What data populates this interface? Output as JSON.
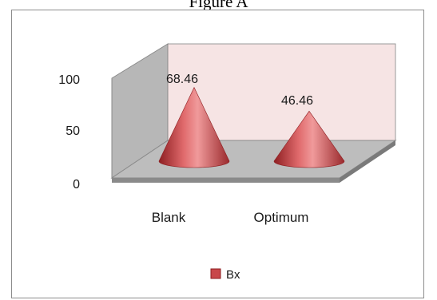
{
  "figure_title": "Figure A",
  "chart_data": {
    "type": "bar",
    "bar_shape": "cone",
    "three_d": true,
    "categories": [
      "Blank",
      "Optimum"
    ],
    "series": [
      {
        "name": "Bx",
        "values": [
          68.46,
          46.46
        ],
        "color": "#c8474a"
      }
    ],
    "data_labels": [
      "68.46",
      "46.46"
    ],
    "y_ticks": [
      "0",
      "50",
      "100"
    ],
    "ylim": [
      0,
      100
    ],
    "title": "",
    "xlabel": "",
    "ylabel": "",
    "grid": false,
    "legend": {
      "position": "bottom",
      "label": "Bx"
    },
    "colors": {
      "back_wall": "#f6e4e4",
      "side_wall": "#b7b7b7",
      "floor": "#bdbdbd",
      "floor_front": "#8a8a8a",
      "cone": "#c8474a"
    }
  }
}
